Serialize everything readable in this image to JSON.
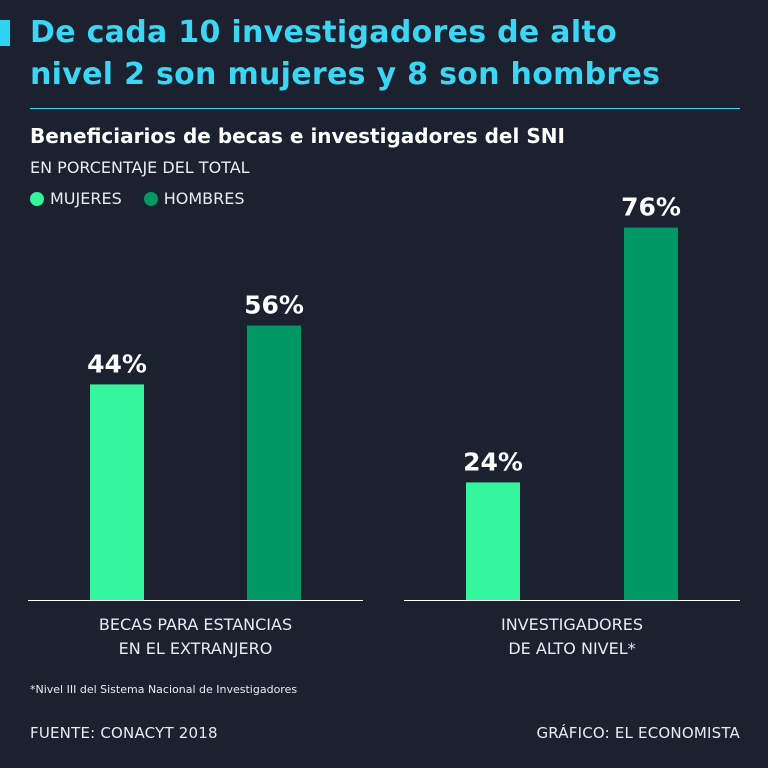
{
  "headline_lines": [
    "De cada 10 investigadores de alto",
    "nivel 2 son mujeres y 8 son hombres"
  ],
  "subtitle": "Beneficiarios de becas e investigadores del SNI",
  "unit_label": "EN PORCENTAJE DEL TOTAL",
  "footnote": "*Nivel III del Sistema Nacional de Investigadores",
  "source": "FUENTE: CONACYT 2018",
  "credit": "GRÁFICO: EL ECONOMISTA",
  "colors": {
    "background": "#1c2130",
    "accent": "#3cd6f5",
    "mujeres": "#33f59c",
    "hombres": "#009966"
  },
  "chart_data": {
    "type": "bar",
    "categories": [
      [
        "BECAS PARA ESTANCIAS",
        "EN EL EXTRANJERO"
      ],
      [
        "INVESTIGADORES",
        "DE ALTO NIVEL*"
      ]
    ],
    "series": [
      {
        "name": "MUJERES",
        "values": [
          44,
          24
        ],
        "labels": [
          "44%",
          "24%"
        ]
      },
      {
        "name": "HOMBRES",
        "values": [
          56,
          76
        ],
        "labels": [
          "56%",
          "76%"
        ]
      }
    ],
    "ylim": [
      0,
      100
    ],
    "grid": false,
    "legend_position": "top-left"
  }
}
